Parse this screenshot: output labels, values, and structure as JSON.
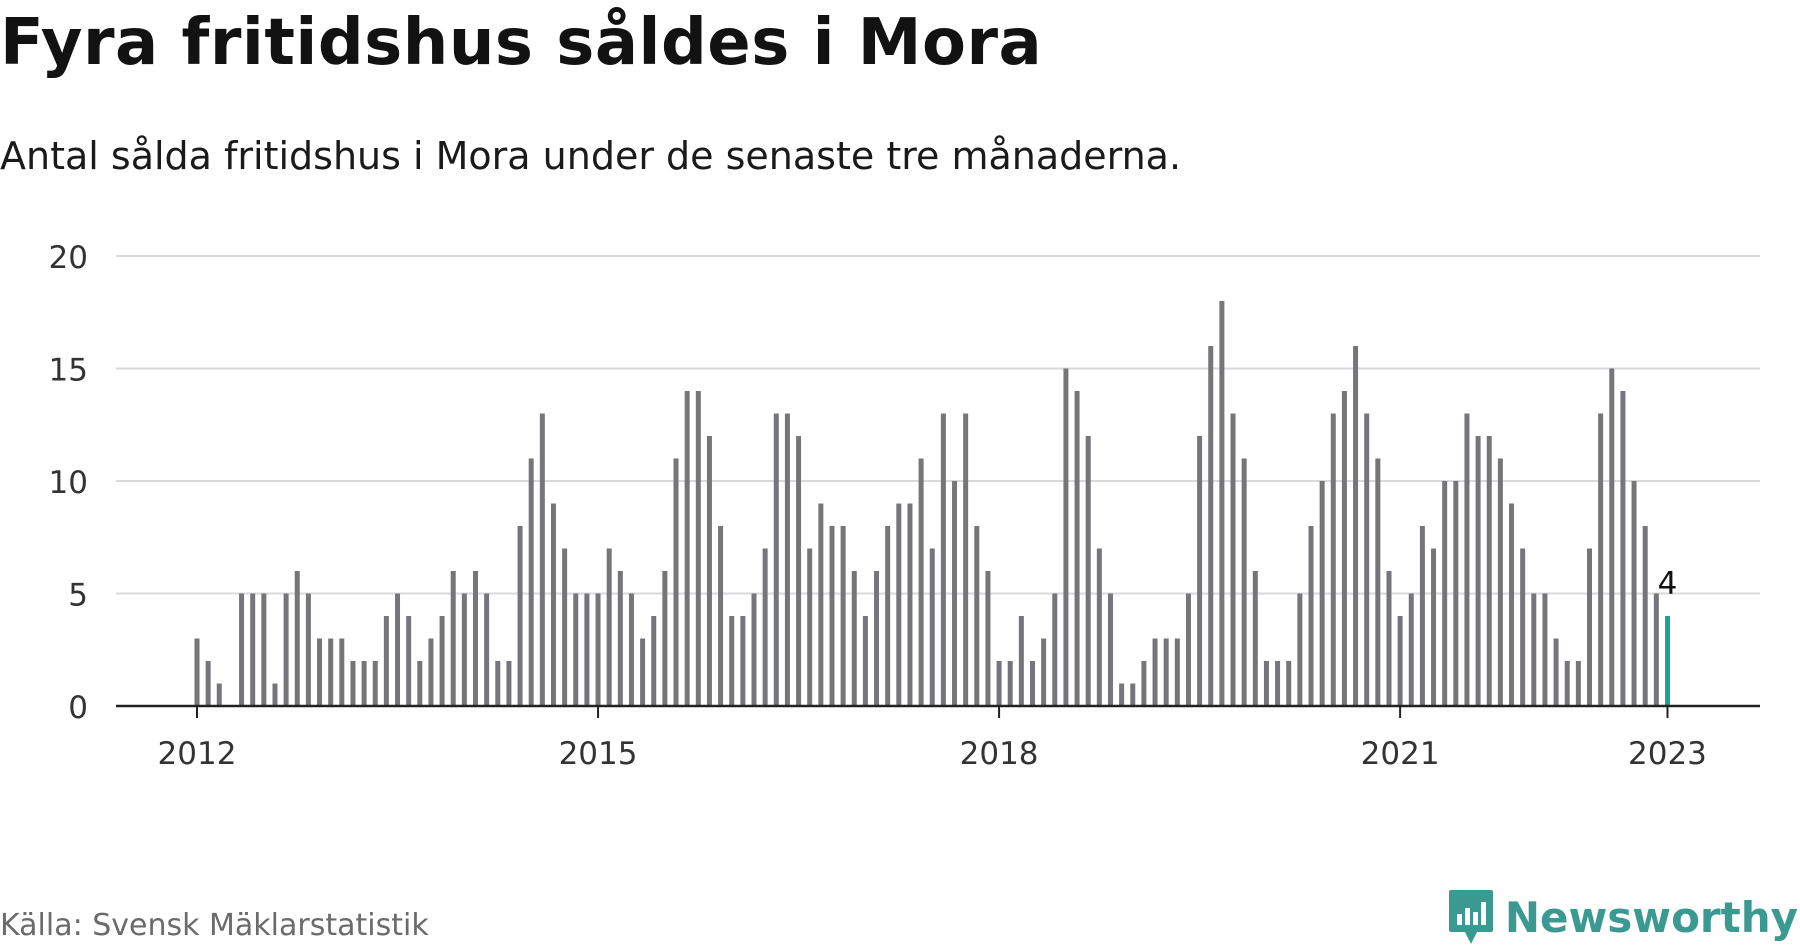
{
  "header": {
    "title": "Fyra fritidshus såldes i Mora",
    "subtitle": "Antal sålda fritidshus i Mora under de senaste tre månaderna."
  },
  "footer": {
    "source": "Källa: Svensk Mäklarstatistik",
    "brand": "Newsworthy"
  },
  "icons": {
    "brand_logo": "newsworthy-logo-icon"
  },
  "colors": {
    "bar": "#767579",
    "highlight": "#1aa39a",
    "grid": "#d9d9d9",
    "axis": "#222222",
    "brand": "#3a9a92"
  },
  "chart_data": {
    "type": "bar",
    "xlabel": "",
    "ylabel": "",
    "ylim": [
      0,
      20
    ],
    "yticks": [
      0,
      5,
      10,
      15,
      20
    ],
    "xticks": [
      "2012",
      "2015",
      "2018",
      "2021",
      "2023"
    ],
    "grid": true,
    "highlight_last": true,
    "annotation": "4",
    "start": "2012-01",
    "end": "2023-01",
    "values": [
      3,
      2,
      1,
      0,
      5,
      5,
      5,
      1,
      5,
      6,
      5,
      3,
      3,
      3,
      2,
      2,
      2,
      4,
      5,
      4,
      2,
      3,
      4,
      6,
      5,
      6,
      5,
      2,
      2,
      8,
      11,
      13,
      9,
      7,
      5,
      5,
      5,
      7,
      6,
      5,
      3,
      4,
      6,
      11,
      14,
      14,
      12,
      8,
      4,
      4,
      5,
      7,
      13,
      13,
      12,
      7,
      9,
      8,
      8,
      6,
      4,
      6,
      8,
      9,
      9,
      11,
      7,
      13,
      10,
      13,
      8,
      6,
      2,
      2,
      4,
      2,
      3,
      5,
      15,
      14,
      12,
      7,
      5,
      1,
      1,
      2,
      3,
      3,
      3,
      5,
      12,
      16,
      18,
      13,
      11,
      6,
      2,
      2,
      2,
      5,
      8,
      10,
      13,
      14,
      16,
      13,
      11,
      6,
      4,
      5,
      8,
      7,
      10,
      10,
      13,
      12,
      12,
      11,
      9,
      7,
      5,
      5,
      3,
      2,
      2,
      7,
      13,
      15,
      14,
      10,
      8,
      5,
      4
    ]
  }
}
